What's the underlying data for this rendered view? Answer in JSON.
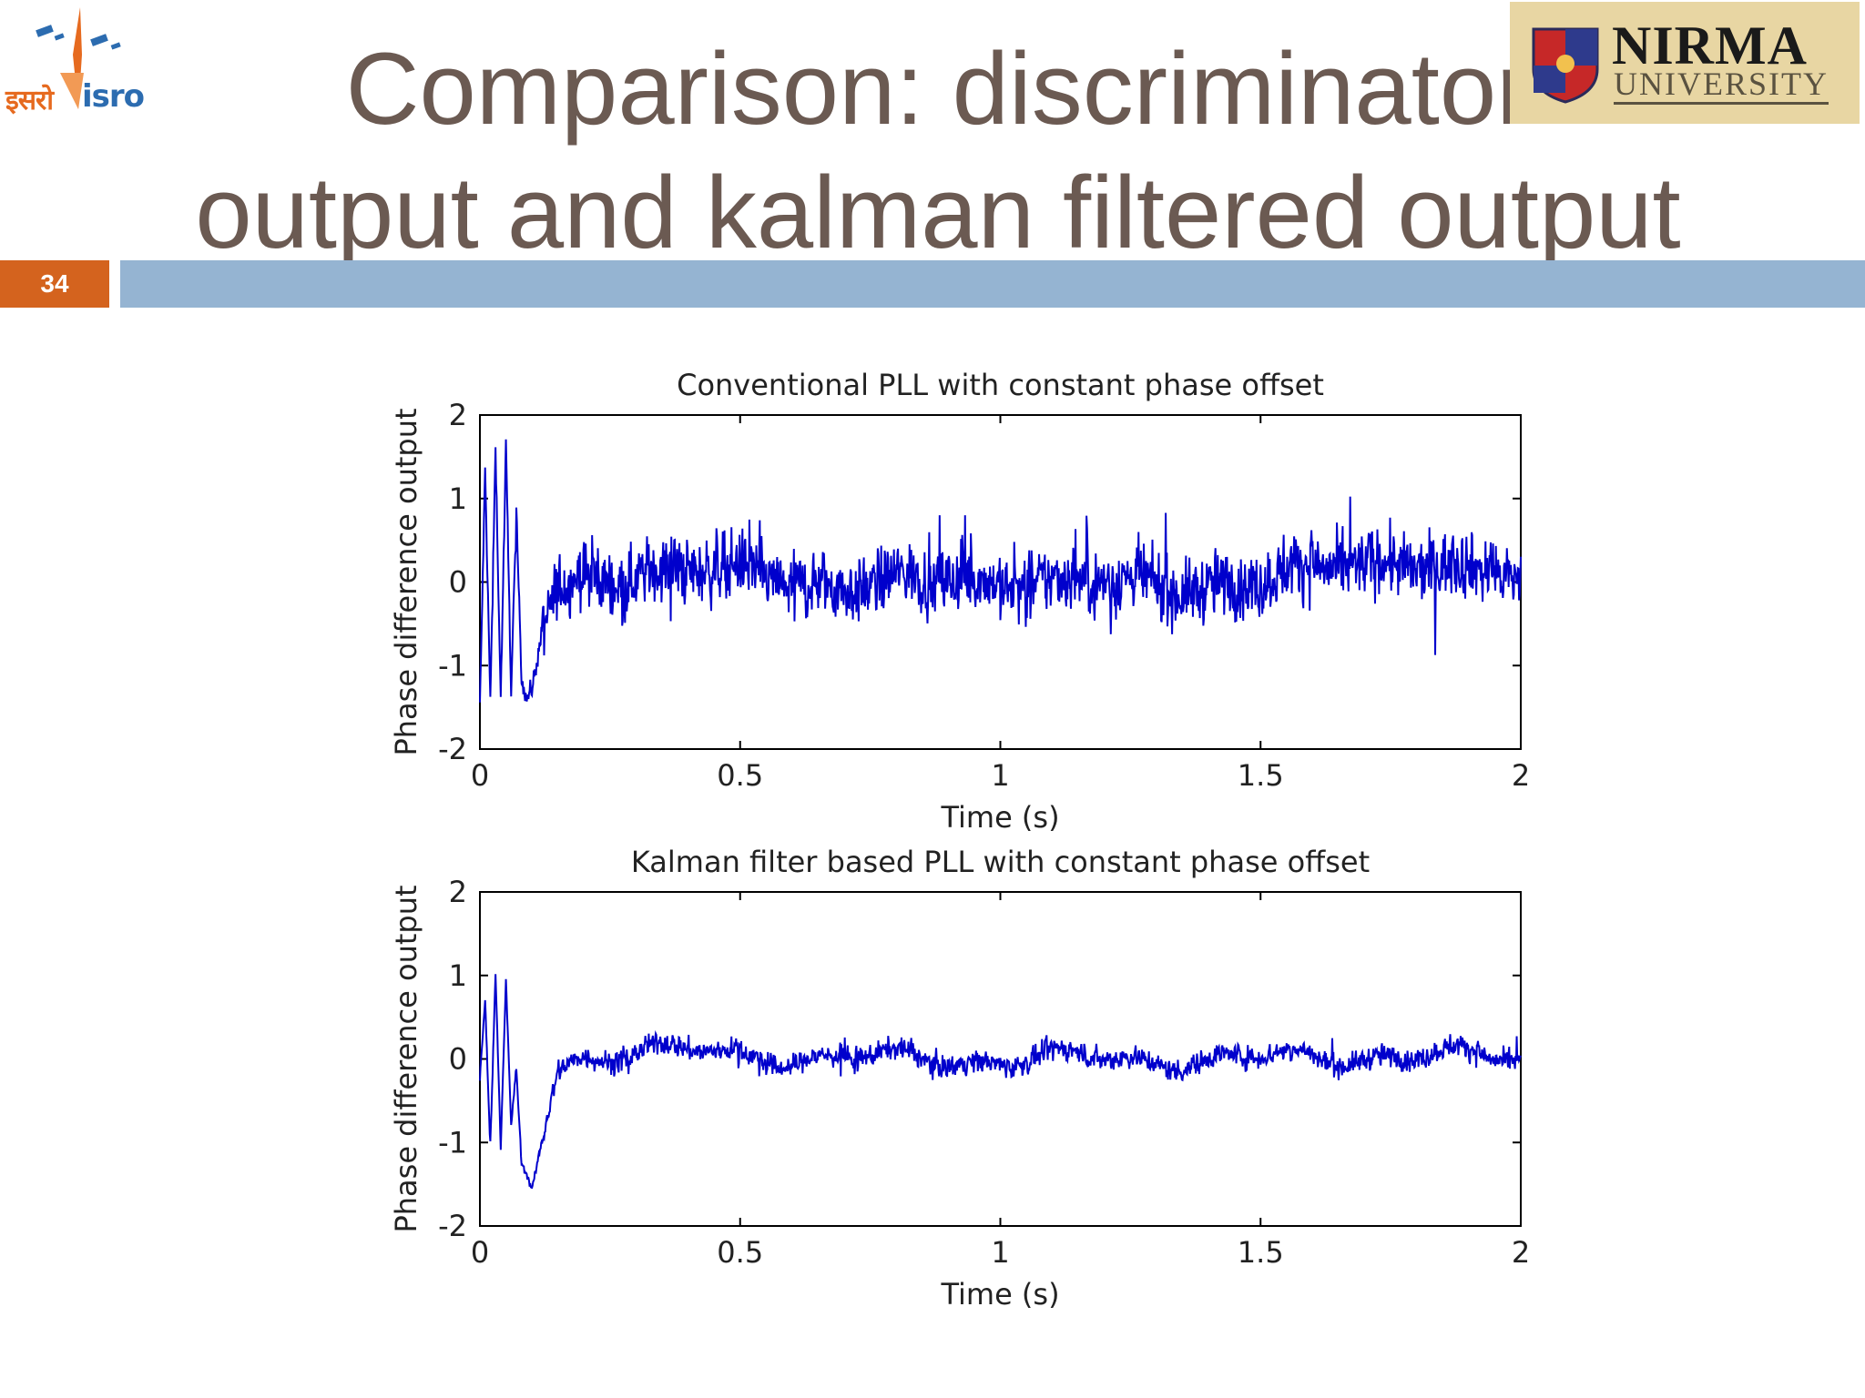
{
  "slide": {
    "title_line_1": "Comparison: discriminator",
    "title_line_2": "output and kalman filtered output",
    "number": "34"
  },
  "logos": {
    "isro_text_hindi": "इसरो",
    "isro_text_english": "isro",
    "nirma_name": "NIRMA",
    "nirma_sub": "UNIVERSITY"
  },
  "colors": {
    "title": "#6b5a52",
    "header_bar": "#95b4d2",
    "number_box": "#d4631e",
    "signal": "#0000cc"
  },
  "chart_data": [
    {
      "type": "line",
      "title": "Conventional PLL with constant phase offset",
      "xlabel": "Time (s)",
      "ylabel": "Phase difference output",
      "xlim": [
        0,
        2
      ],
      "ylim": [
        -2,
        2
      ],
      "xticks": [
        "0",
        "0.5",
        "1",
        "1.5",
        "2"
      ],
      "yticks": [
        "2",
        "1",
        "0",
        "-1",
        "-2"
      ],
      "grid": false,
      "series": [
        {
          "x": [
            0,
            0.01,
            0.02,
            0.03,
            0.04,
            0.05,
            0.06,
            0.07,
            0.08,
            0.09,
            0.1,
            0.12,
            0.15,
            0.2,
            0.3,
            0.5,
            0.75,
            1.0,
            1.25,
            1.5,
            1.75,
            2.0
          ],
          "y": [
            -1.5,
            1.3,
            -1.5,
            1.5,
            -1.5,
            1.5,
            -1.4,
            0.7,
            -1.2,
            -1.45,
            -1.3,
            -0.6,
            -0.1,
            0.05,
            0.15,
            0.1,
            -0.05,
            0.05,
            -0.05,
            0.0,
            0.3,
            0.0
          ],
          "noise_amplitude": 0.35
        }
      ]
    },
    {
      "type": "line",
      "title": "Kalman filter based PLL with constant phase offset",
      "xlabel": "Time (s)",
      "ylabel": "Phase difference output",
      "xlim": [
        0,
        2
      ],
      "ylim": [
        -2,
        2
      ],
      "xticks": [
        "0",
        "0.5",
        "1",
        "1.5",
        "2"
      ],
      "yticks": [
        "2",
        "1",
        "0",
        "-1",
        "-2"
      ],
      "grid": false,
      "series": [
        {
          "x": [
            0,
            0.01,
            0.02,
            0.03,
            0.04,
            0.05,
            0.06,
            0.07,
            0.08,
            0.09,
            0.1,
            0.12,
            0.15,
            0.2,
            0.3,
            0.5,
            0.75,
            1.0,
            1.25,
            1.5,
            1.75,
            2.0
          ],
          "y": [
            -0.3,
            0.6,
            -1.2,
            0.9,
            -1.2,
            0.8,
            -0.9,
            -0.2,
            -1.3,
            -1.4,
            -1.55,
            -0.9,
            -0.1,
            0.05,
            0.1,
            0.05,
            0.0,
            0.0,
            0.0,
            0.0,
            0.05,
            0.0
          ],
          "noise_amplitude": 0.12
        }
      ]
    }
  ]
}
